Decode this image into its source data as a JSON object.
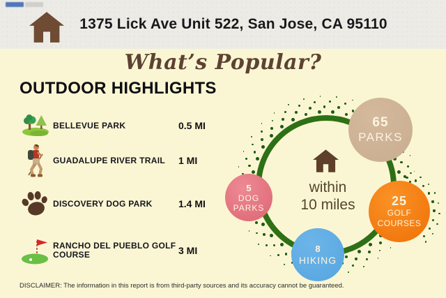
{
  "banner": {
    "address": "1375 Lick Ave Unit 522, San Jose, CA 95110"
  },
  "titles": {
    "main": "What’s Popular?",
    "section": "OUTDOOR HIGHLIGHTS"
  },
  "highlights": [
    {
      "icon": "park-icon",
      "name": "BELLEVUE PARK",
      "distance": "0.5 MI"
    },
    {
      "icon": "hiker-icon",
      "name": "GUADALUPE RIVER TRAIL",
      "distance": "1 MI"
    },
    {
      "icon": "paw-icon",
      "name": "DISCOVERY DOG PARK",
      "distance": "1.4 MI"
    },
    {
      "icon": "golf-icon",
      "name": "RANCHO DEL PUEBLO GOLF COURSE",
      "distance": "3 MI"
    }
  ],
  "radius_diagram": {
    "center_icon": "home-icon",
    "center_line1": "within",
    "center_line2": "10 miles",
    "ring_color": "#2e7015",
    "dot_color": "#1e5c10",
    "stats": [
      {
        "count": "65",
        "lines": [
          "PARKS"
        ],
        "color": "#c9ad90",
        "highlight": "#d4b99d"
      },
      {
        "count": "5",
        "lines": [
          "DOG",
          "PARKS"
        ],
        "color": "#dd6572",
        "highlight": "#ec8a94"
      },
      {
        "count": "25",
        "lines": [
          "GOLF",
          "COURSES"
        ],
        "color": "#ee7006",
        "highlight": "#fb9226"
      },
      {
        "count": "8",
        "lines": [
          "HIKING"
        ],
        "color": "#55a5e0",
        "highlight": "#6db5e9"
      }
    ]
  },
  "disclaimer": "DISCLAIMER: The information in this report is from third-party sources and its accuracy cannot be guaranteed."
}
